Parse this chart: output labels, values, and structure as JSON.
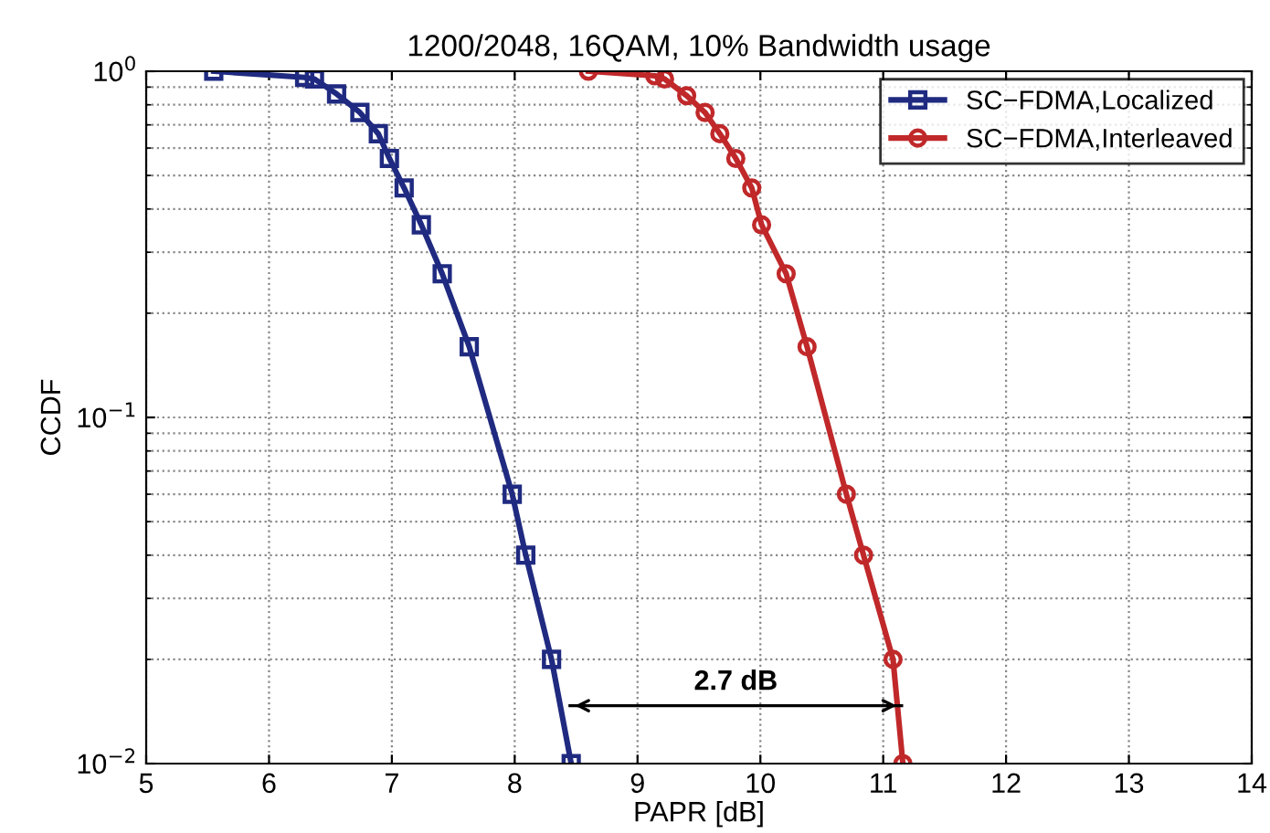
{
  "chart_data": {
    "type": "line",
    "title": "1200/2048, 16QAM, 10% Bandwidth usage",
    "xlabel": "PAPR [dB]",
    "ylabel": "CCDF",
    "series": [
      {
        "name": "SC−FDMA,Localized",
        "color": "#1f2a80",
        "marker": "square",
        "x": [
          5.55,
          6.29,
          6.37,
          6.55,
          6.74,
          6.89,
          6.98,
          7.1,
          7.24,
          7.41,
          7.63,
          7.98,
          8.09,
          8.3,
          8.46
        ],
        "values": [
          1.0,
          0.96,
          0.95,
          0.86,
          0.76,
          0.66,
          0.56,
          0.46,
          0.36,
          0.26,
          0.16,
          0.06,
          0.04,
          0.02,
          0.01
        ]
      },
      {
        "name": "SC−FDMA,Interleaved",
        "color": "#c0282a",
        "marker": "circle",
        "x": [
          8.6,
          9.14,
          9.22,
          9.4,
          9.55,
          9.67,
          9.8,
          9.93,
          10.01,
          10.21,
          10.38,
          10.7,
          10.84,
          11.08,
          11.16
        ],
        "values": [
          1.0,
          0.97,
          0.95,
          0.85,
          0.76,
          0.66,
          0.56,
          0.46,
          0.36,
          0.26,
          0.16,
          0.06,
          0.04,
          0.02,
          0.01
        ]
      },
      {
        "type": "line",
        "color": "#000000",
        "marker": "none",
        "x": [
          8.45,
          11.15
        ],
        "values": [
          0.0147,
          0.0147
        ]
      }
    ],
    "xlim": [
      5,
      14
    ],
    "xticks": [
      5,
      6,
      7,
      8,
      9,
      10,
      11,
      12,
      13,
      14
    ],
    "ylim": [
      0.01,
      1
    ],
    "yticks": [
      {
        "value": 0.01,
        "label": "10$^{−2}$"
      },
      {
        "value": 0.1,
        "label": "10$^{−1}$"
      },
      {
        "value": 1,
        "label": "10$^{0}$"
      }
    ],
    "log": "y",
    "grid": true,
    "legend": "top right",
    "line_style": "solid",
    "annotations": [
      "2.7 dB"
    ]
  }
}
